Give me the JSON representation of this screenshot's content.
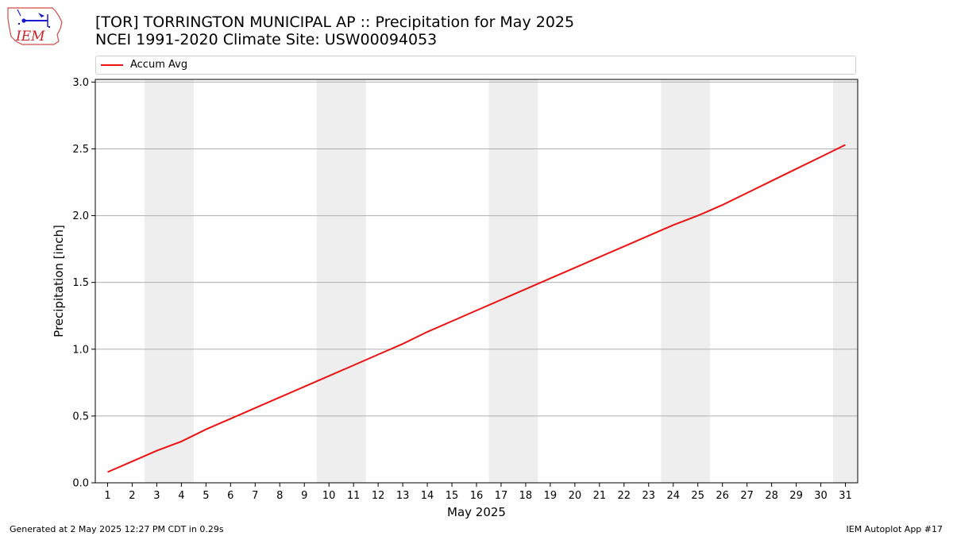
{
  "header": {
    "title_line1": "[TOR] TORRINGTON MUNICIPAL AP :: Precipitation for May 2025",
    "title_line2": "NCEI 1991-2020 Climate Site: USW00094053"
  },
  "logo": {
    "text": "IEM"
  },
  "footer": {
    "left": "Generated at 2 May 2025 12:27 PM CDT in 0.29s",
    "right": "IEM Autoplot App #17"
  },
  "chart_data": {
    "type": "line",
    "xlabel": "May 2025",
    "ylabel": "Precipitation [inch]",
    "xlim": [
      0.5,
      31.5
    ],
    "ylim": [
      0,
      3.02
    ],
    "yticks": [
      0.0,
      0.5,
      1.0,
      1.5,
      2.0,
      2.5,
      3.0
    ],
    "xticks": [
      1,
      2,
      3,
      4,
      5,
      6,
      7,
      8,
      9,
      10,
      11,
      12,
      13,
      14,
      15,
      16,
      17,
      18,
      19,
      20,
      21,
      22,
      23,
      24,
      25,
      26,
      27,
      28,
      29,
      30,
      31
    ],
    "grid": "horizontal",
    "legend_position": "top",
    "weekend_bands": [
      [
        2.5,
        4.5
      ],
      [
        9.5,
        11.5
      ],
      [
        16.5,
        18.5
      ],
      [
        23.5,
        25.5
      ],
      [
        30.5,
        31.5
      ]
    ],
    "series": [
      {
        "name": "Accum Avg",
        "color": "#ee1111",
        "x": [
          1,
          2,
          3,
          4,
          5,
          6,
          7,
          8,
          9,
          10,
          11,
          12,
          13,
          14,
          15,
          16,
          17,
          18,
          19,
          20,
          21,
          22,
          23,
          24,
          25,
          26,
          27,
          28,
          29,
          30,
          31
        ],
        "values": [
          0.08,
          0.16,
          0.24,
          0.31,
          0.4,
          0.48,
          0.56,
          0.64,
          0.72,
          0.8,
          0.88,
          0.96,
          1.04,
          1.13,
          1.21,
          1.29,
          1.37,
          1.45,
          1.53,
          1.61,
          1.69,
          1.77,
          1.85,
          1.93,
          2.0,
          2.08,
          2.17,
          2.26,
          2.35,
          2.44,
          2.53
        ]
      }
    ]
  }
}
